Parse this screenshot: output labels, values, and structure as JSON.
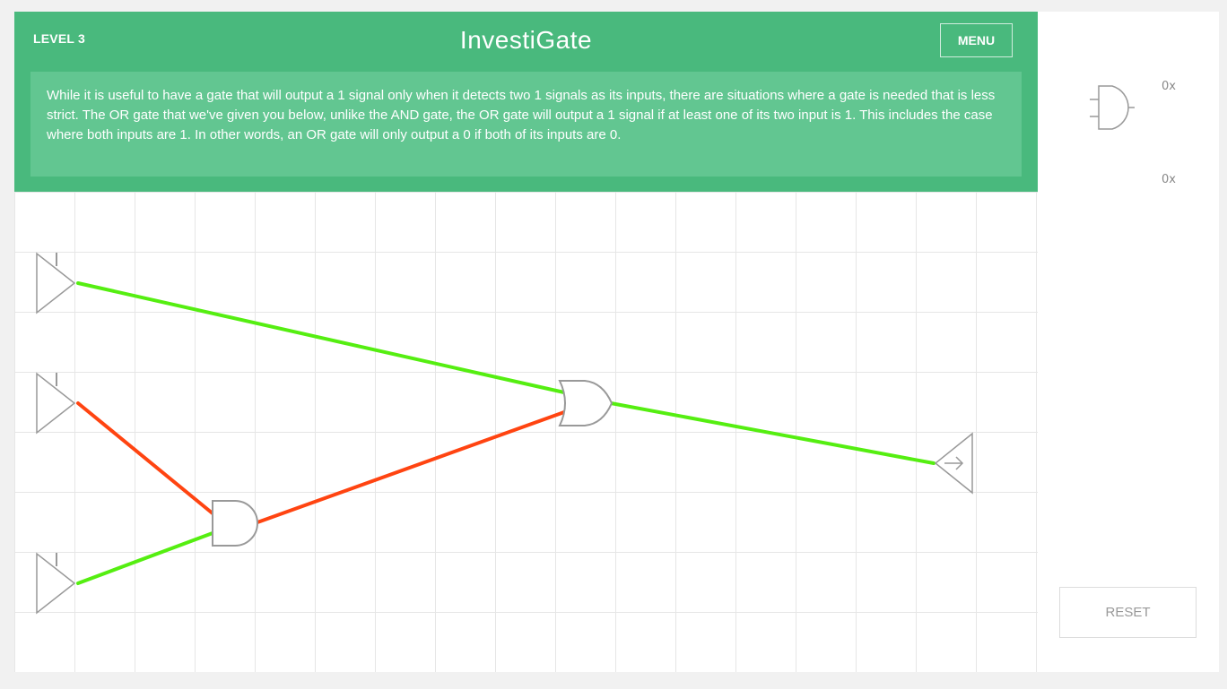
{
  "header": {
    "level_label": "LEVEL 3",
    "title": "InvestiGate",
    "menu_label": "MENU",
    "background_color": "#49b97d"
  },
  "instructions": {
    "text": "While it is useful to have a gate that will output a 1 signal only when it detects two 1 signals as its inputs, there are situations where a gate is needed that is less strict. The OR gate that we've given you below, unlike the AND gate, the OR gate will output a 1 signal if at least one of its two input is 1. This includes the case where both inputs are 1. In other words, an OR gate will only output a 0 if both of its inputs are 0."
  },
  "sidebar": {
    "palette": [
      {
        "icon": "and-gate-icon",
        "count": "0x"
      },
      {
        "icon": "empty-slot",
        "count": "0x"
      }
    ],
    "reset_label": "RESET"
  },
  "circuit": {
    "signal_colors": {
      "on": "#55ee11",
      "off": "#ff4411"
    },
    "inputs": [
      {
        "name": "input-1",
        "signal": "on"
      },
      {
        "name": "input-2",
        "signal": "off"
      },
      {
        "name": "input-3",
        "signal": "on"
      }
    ],
    "gates": [
      {
        "name": "and-gate",
        "type": "AND"
      },
      {
        "name": "or-gate",
        "type": "OR"
      }
    ],
    "output": {
      "name": "output-node"
    },
    "wires": [
      {
        "name": "wire-input1-to-or",
        "signal": "on"
      },
      {
        "name": "wire-input2-to-and",
        "signal": "off"
      },
      {
        "name": "wire-input3-to-and",
        "signal": "on"
      },
      {
        "name": "wire-and-to-or",
        "signal": "off"
      },
      {
        "name": "wire-or-to-output",
        "signal": "on"
      }
    ]
  }
}
